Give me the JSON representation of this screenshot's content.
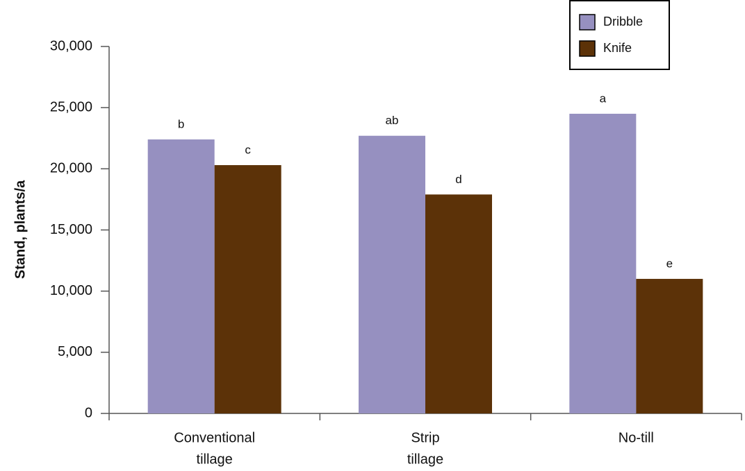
{
  "chart_data": {
    "type": "bar",
    "y_label": "Stand, plants/a",
    "categories": [
      [
        "Conventional",
        "tillage"
      ],
      [
        "Strip",
        "tillage"
      ],
      [
        "No-till"
      ]
    ],
    "series": [
      {
        "name": "Dribble",
        "color": "#9690c0",
        "values": [
          22400,
          22700,
          24500
        ],
        "significance": [
          "b",
          "ab",
          "a"
        ]
      },
      {
        "name": "Knife",
        "color": "#5c3208",
        "values": [
          20300,
          17900,
          11000
        ],
        "significance": [
          "c",
          "d",
          "e"
        ]
      }
    ],
    "ylim": [
      0,
      30000
    ],
    "yticks": [
      0,
      {
        "value": 5000,
        "label": "5,000"
      },
      {
        "value": 10000,
        "label": "10,000"
      },
      {
        "value": 15000,
        "label": "15,000"
      },
      {
        "value": 20000,
        "label": "20,000"
      },
      {
        "value": 25000,
        "label": "25,000"
      },
      {
        "value": 30000,
        "label": "30,000"
      }
    ],
    "legend": "top-right"
  }
}
